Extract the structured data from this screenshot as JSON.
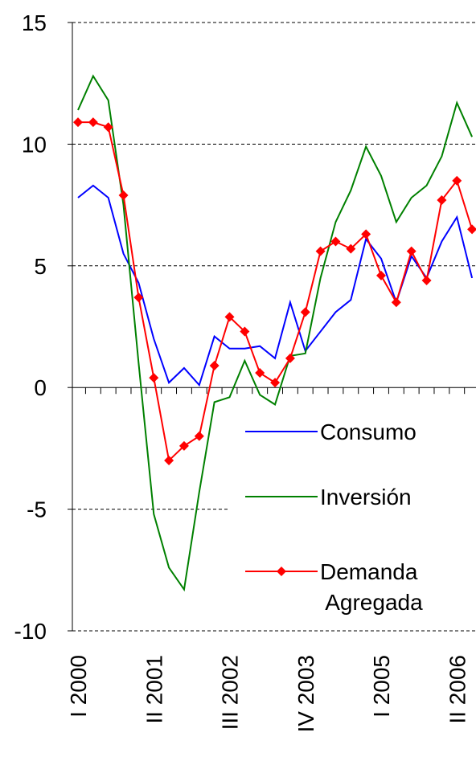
{
  "chart_data": {
    "type": "line",
    "categories": [
      "I 2000",
      null,
      null,
      null,
      null,
      "II 2001",
      null,
      null,
      null,
      null,
      "III 2002",
      null,
      null,
      null,
      null,
      "IV 2003",
      null,
      null,
      null,
      null,
      "I 2005",
      null,
      null,
      null,
      null,
      "II 2006",
      null
    ],
    "series": [
      {
        "name": "Consumo",
        "color": "#0000ff",
        "values": [
          7.8,
          8.3,
          7.8,
          5.5,
          4.3,
          2.0,
          0.2,
          0.8,
          0.1,
          2.1,
          1.6,
          1.6,
          1.7,
          1.2,
          3.5,
          1.5,
          2.3,
          3.1,
          3.6,
          6.1,
          5.3,
          3.5,
          5.4,
          4.5,
          6.0,
          7.0,
          4.5
        ]
      },
      {
        "name": "Inversión",
        "color": "#008000",
        "values": [
          11.4,
          12.8,
          11.8,
          7.5,
          1.0,
          -5.2,
          -7.4,
          -8.3,
          -4.3,
          -0.6,
          -0.4,
          1.1,
          -0.3,
          -0.7,
          1.3,
          1.4,
          4.5,
          6.8,
          8.1,
          9.9,
          8.7,
          6.8,
          7.8,
          8.3,
          9.5,
          11.7,
          10.3
        ]
      },
      {
        "name": "Demanda Agregada",
        "color": "#ff0000",
        "marker": "diamond",
        "values": [
          10.9,
          10.9,
          10.7,
          7.9,
          3.7,
          0.4,
          -3.0,
          -2.4,
          -2.0,
          0.9,
          2.9,
          2.3,
          0.6,
          0.2,
          1.2,
          3.1,
          5.6,
          6.0,
          5.7,
          6.3,
          4.6,
          3.5,
          5.6,
          4.4,
          7.7,
          8.5,
          6.5
        ]
      }
    ],
    "ylim": [
      -10,
      15
    ],
    "yticks": [
      -10,
      -5,
      0,
      5,
      10,
      15
    ],
    "grid": true,
    "legend": "lower right"
  }
}
